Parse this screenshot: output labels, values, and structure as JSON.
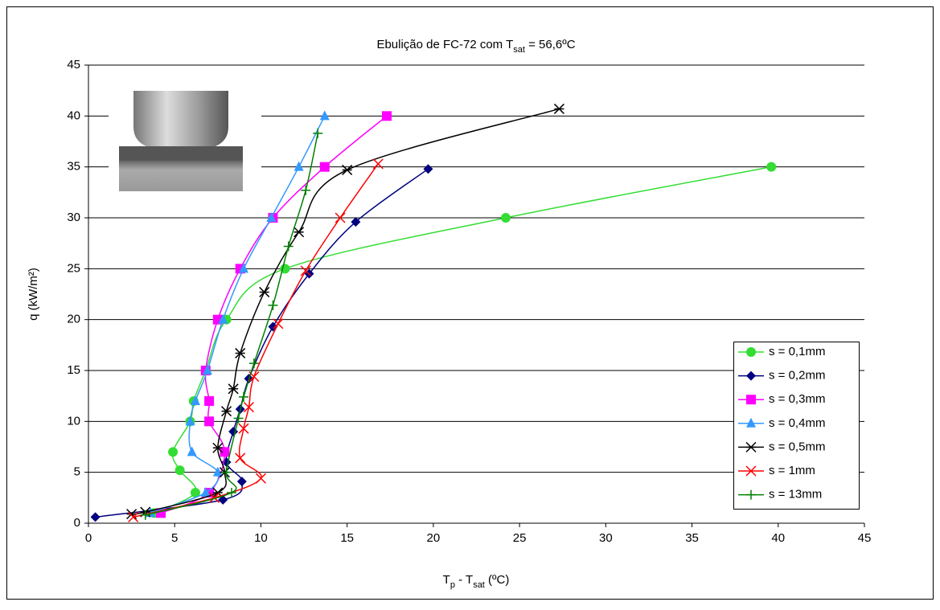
{
  "chart_data": {
    "type": "line",
    "smooth": true,
    "title": [
      "Ebulição de FC-72 com T",
      "sat",
      " = 56,6ºC"
    ],
    "x_label": [
      "T",
      "p",
      " - T",
      "sat",
      " (ºC)"
    ],
    "y_label": "q (kW/m²)",
    "xlim": [
      0,
      45
    ],
    "xticks": [
      0,
      5,
      10,
      15,
      20,
      25,
      30,
      35,
      40,
      45
    ],
    "ylim": [
      0,
      45
    ],
    "yticks": [
      0,
      5,
      10,
      15,
      20,
      25,
      30,
      35,
      40,
      45
    ],
    "grid": true,
    "legend": "lower right",
    "series": [
      {
        "name": "s = 0,1mm",
        "color": "#33dd33",
        "marker": "circle",
        "x": [
          3.8,
          6.2,
          5.3,
          4.9,
          5.9,
          6.1,
          6.8,
          8.0,
          11.4,
          24.2,
          39.6
        ],
        "values": [
          1,
          3,
          5.2,
          7,
          10,
          12,
          15,
          20,
          25,
          30,
          35
        ]
      },
      {
        "name": "s = 0,2mm",
        "color": "#000080",
        "marker": "diamond",
        "x": [
          0.4,
          7.8,
          8.9,
          8.0,
          8.4,
          8.8,
          9.3,
          10.7,
          12.8,
          15.5,
          19.7
        ],
        "values": [
          0.6,
          2.3,
          4.1,
          6,
          9,
          11.2,
          14.2,
          19.3,
          24.5,
          29.6,
          34.8
        ]
      },
      {
        "name": "s = 0,3mm",
        "color": "#ff00ff",
        "marker": "square",
        "x": [
          4.2,
          7.0,
          7.9,
          7.0,
          7.0,
          6.8,
          7.5,
          8.8,
          10.7,
          13.7,
          17.3
        ],
        "values": [
          1,
          3,
          7,
          10,
          12,
          15,
          20,
          25,
          30,
          35,
          40
        ]
      },
      {
        "name": "s = 0,4mm",
        "color": "#3399ff",
        "marker": "triangle",
        "x": [
          3.6,
          6.8,
          7.5,
          6.0,
          5.9,
          6.2,
          6.9,
          7.8,
          9.0,
          10.6,
          12.2,
          13.7
        ],
        "values": [
          1,
          3,
          5,
          7,
          10,
          12,
          15,
          20,
          25,
          30,
          35,
          40
        ]
      },
      {
        "name": "s = 0,5mm",
        "color": "#000000",
        "marker": "star",
        "x": [
          2.5,
          3.3,
          7.5,
          7.9,
          7.5,
          8.0,
          8.4,
          8.8,
          10.2,
          12.2,
          15.0,
          27.3
        ],
        "values": [
          0.9,
          1.1,
          3,
          5,
          7.4,
          11,
          13.2,
          16.7,
          22.7,
          28.6,
          34.7,
          40.7
        ]
      },
      {
        "name": "s = 1mm",
        "color": "#ff0000",
        "marker": "x",
        "x": [
          2.6,
          7.3,
          10.0,
          8.8,
          9.0,
          9.3,
          9.6,
          11.0,
          12.6,
          14.6,
          16.8
        ],
        "values": [
          0.6,
          2.5,
          4.4,
          6.4,
          9.3,
          11.4,
          14.4,
          19.6,
          24.8,
          30,
          35.3
        ]
      },
      {
        "name": "s = 13mm",
        "color": "#008000",
        "marker": "plus",
        "x": [
          3.3,
          8.3,
          8.0,
          8.7,
          9.0,
          9.6,
          10.7,
          11.6,
          12.6,
          13.3
        ],
        "values": [
          0.8,
          3,
          5,
          10.3,
          12.4,
          15.7,
          21.4,
          27.2,
          32.7,
          38.3
        ]
      }
    ]
  }
}
